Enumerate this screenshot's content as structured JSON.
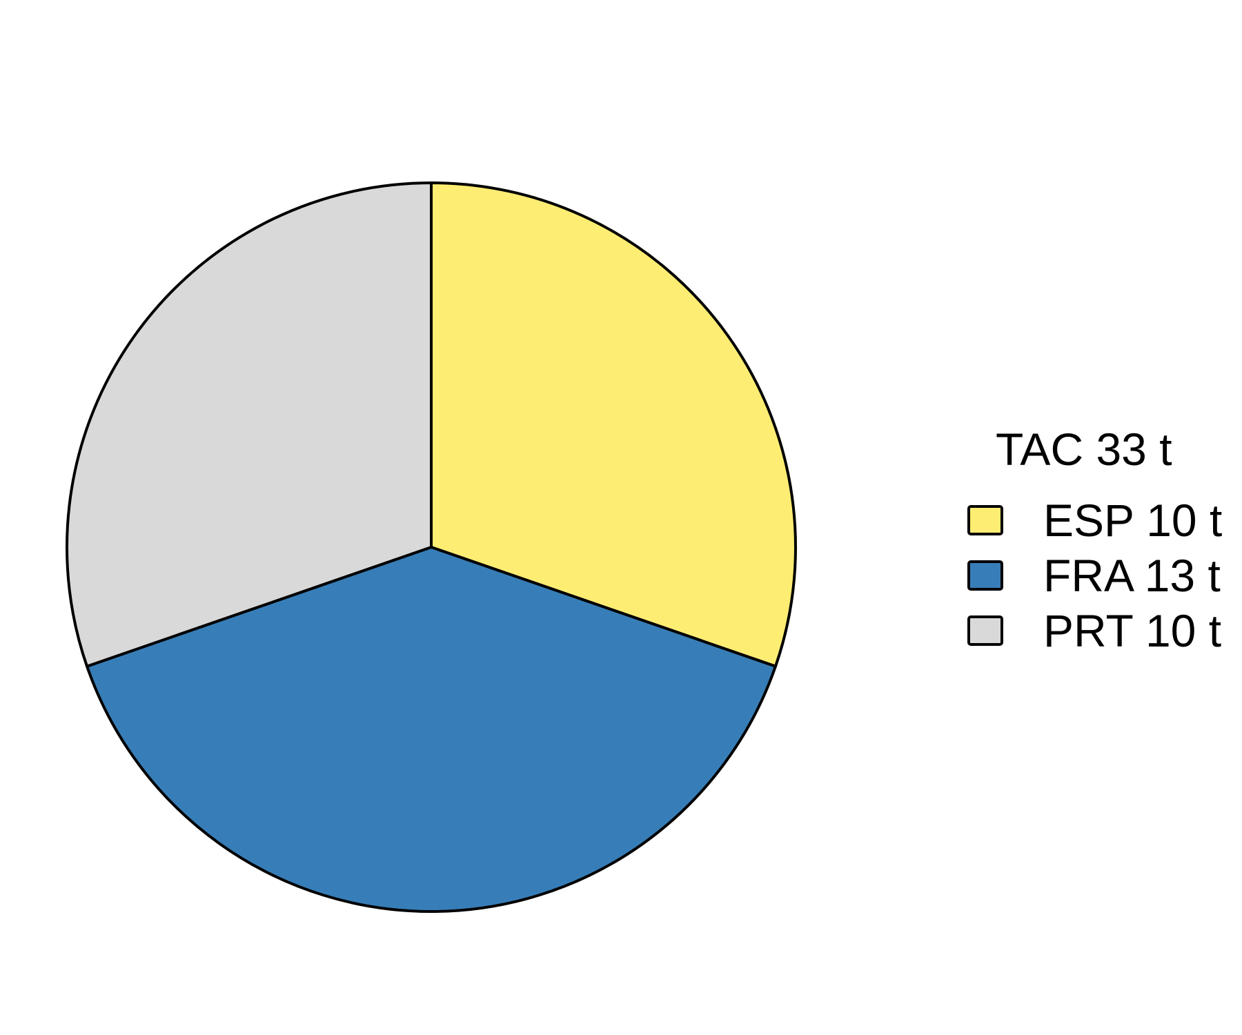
{
  "chart_data": {
    "type": "pie",
    "legend_title": "TAC 33 t",
    "legend_position": "right",
    "start": "top",
    "direction": "clockwise",
    "slices": [
      {
        "name": "ESP",
        "value": 10,
        "label": "ESP 10 t",
        "color": "#FEED73"
      },
      {
        "name": "FRA",
        "value": 13,
        "label": "FRA 13 t",
        "color": "#377EB8"
      },
      {
        "name": "PRT",
        "value": 10,
        "label": "PRT 10 t",
        "color": "#D9D9D9"
      }
    ]
  }
}
